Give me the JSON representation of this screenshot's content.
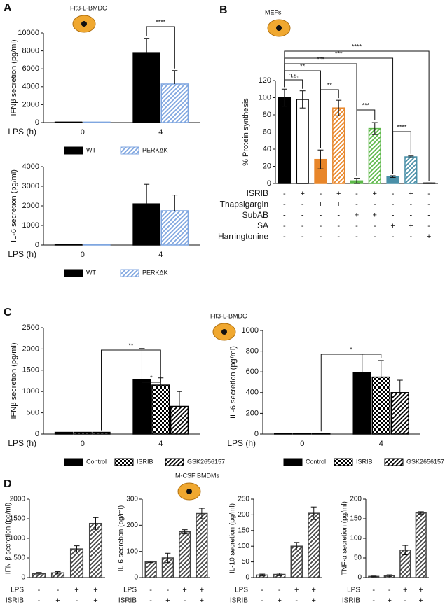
{
  "chart_data": [
    {
      "type": "bar",
      "panel": "A",
      "icon_label": "Flt3-L-BMDC",
      "ylabel": "IFNβ secretion (pg/ml)",
      "xlabel": "LPS (h)",
      "categories": [
        "0",
        "4"
      ],
      "series": [
        {
          "name": "WT",
          "color": "#000000",
          "pattern": "solid",
          "values": [
            50,
            7800
          ],
          "errors": [
            null,
            1600
          ]
        },
        {
          "name": "PERKΔK",
          "color": "#7fa6e0",
          "pattern": "hatch",
          "values": [
            50,
            4300
          ],
          "errors": [
            null,
            1500
          ]
        }
      ],
      "ylim": [
        0,
        10000
      ],
      "yticks": [
        0,
        2000,
        4000,
        6000,
        8000,
        10000
      ],
      "annotations": [
        "****"
      ]
    },
    {
      "type": "bar",
      "ylabel": "IL-6 secretion (pg/ml)",
      "xlabel": "LPS (h)",
      "categories": [
        "0",
        "4"
      ],
      "series": [
        {
          "name": "WT",
          "color": "#000000",
          "pattern": "solid",
          "values": [
            20,
            2100
          ],
          "errors": [
            null,
            1000
          ]
        },
        {
          "name": "PERKΔK",
          "color": "#7fa6e0",
          "pattern": "hatch",
          "values": [
            20,
            1750
          ],
          "errors": [
            null,
            800
          ]
        }
      ],
      "ylim": [
        0,
        4000
      ],
      "yticks": [
        0,
        1000,
        2000,
        3000,
        4000
      ]
    },
    {
      "type": "bar",
      "panel": "B",
      "icon_label": "MEFs",
      "ylabel": "% Protein synthesis",
      "values": [
        100,
        98,
        28,
        88,
        3,
        64,
        8,
        31,
        0.5
      ],
      "errors": [
        10,
        10,
        11,
        9,
        3,
        7,
        1,
        1,
        0
      ],
      "colors": [
        "#000000",
        "#000000",
        "#e8862a",
        "#e8862a",
        "#5cb848",
        "#5cb848",
        "#4a90a8",
        "#4a90a8",
        "#000000"
      ],
      "patterns": [
        "solid",
        "outline",
        "solid",
        "hatch",
        "solid",
        "hatch",
        "solid",
        "hatch",
        "solid"
      ],
      "conditions": [
        {
          "name": "ISRIB",
          "values": [
            "-",
            "+",
            "-",
            "+",
            "-",
            "+",
            "-",
            "+",
            "-"
          ]
        },
        {
          "name": "Thapsigargin",
          "values": [
            "-",
            "-",
            "+",
            "+",
            "-",
            "-",
            "-",
            "-",
            "-"
          ]
        },
        {
          "name": "SubAB",
          "values": [
            "-",
            "-",
            "-",
            "-",
            "+",
            "+",
            "-",
            "-",
            "-"
          ]
        },
        {
          "name": "SA",
          "values": [
            "-",
            "-",
            "-",
            "-",
            "-",
            "-",
            "+",
            "+",
            "-"
          ]
        },
        {
          "name": "Harringtonine",
          "values": [
            "-",
            "-",
            "-",
            "-",
            "-",
            "-",
            "-",
            "-",
            "+"
          ]
        }
      ],
      "ylim": [
        0,
        120
      ],
      "yticks": [
        0,
        20,
        40,
        60,
        80,
        100,
        120
      ],
      "annotations": [
        "n.s.",
        "**",
        "***",
        "***",
        "****",
        "**",
        "***",
        "****"
      ]
    },
    {
      "type": "bar",
      "panel": "C",
      "icon_label": "Flt3-L-BMDC",
      "ylabel": "IFNβ secretion (pg/ml)",
      "xlabel": "LPS (h)",
      "categories": [
        "0",
        "4"
      ],
      "series": [
        {
          "name": "Control",
          "color": "#000000",
          "pattern": "solid",
          "values": [
            40,
            1280
          ],
          "errors": [
            null,
            730
          ]
        },
        {
          "name": "ISRIB",
          "color": "#000000",
          "pattern": "check",
          "values": [
            40,
            1150
          ],
          "errors": [
            null,
            170
          ]
        },
        {
          "name": "GSK2656157",
          "color": "#000000",
          "pattern": "hatch",
          "values": [
            40,
            650
          ],
          "errors": [
            null,
            350
          ]
        }
      ],
      "ylim": [
        0,
        2500
      ],
      "yticks": [
        0,
        500,
        1000,
        1500,
        2000,
        2500
      ],
      "annotations": [
        "**",
        "*"
      ]
    },
    {
      "type": "bar",
      "ylabel": "IL-6 secretion (pg/ml)",
      "xlabel": "LPS (h)",
      "categories": [
        "0",
        "4"
      ],
      "series": [
        {
          "name": "Control",
          "color": "#000000",
          "pattern": "solid",
          "values": [
            5,
            590
          ],
          "errors": [
            null,
            180
          ]
        },
        {
          "name": "ISRIB",
          "color": "#000000",
          "pattern": "check",
          "values": [
            5,
            550
          ],
          "errors": [
            null,
            160
          ]
        },
        {
          "name": "GSK2656157",
          "color": "#000000",
          "pattern": "hatch",
          "values": [
            5,
            400
          ],
          "errors": [
            null,
            120
          ]
        }
      ],
      "ylim": [
        0,
        1000
      ],
      "yticks": [
        0,
        200,
        400,
        600,
        800,
        1000
      ],
      "annotations": [
        "*"
      ]
    },
    {
      "type": "bar",
      "panel": "D",
      "ylabel": "IFN-β secretion (pg/ml)",
      "values": [
        100,
        120,
        730,
        1380
      ],
      "errors": [
        30,
        30,
        80,
        150
      ],
      "color": "#444444",
      "pattern": "hatch",
      "conditions": [
        {
          "name": "LPS",
          "values": [
            "-",
            "-",
            "+",
            "+"
          ]
        },
        {
          "name": "ISRIB",
          "values": [
            "-",
            "+",
            "-",
            "+"
          ]
        }
      ],
      "ylim": [
        0,
        2000
      ],
      "yticks": [
        0,
        500,
        1000,
        1500,
        2000
      ]
    },
    {
      "type": "bar",
      "icon_label": "M-CSF BMDMs",
      "ylabel": "IL-6 secretion (pg/ml)",
      "values": [
        60,
        75,
        175,
        245
      ],
      "errors": [
        3,
        18,
        8,
        20
      ],
      "color": "#444444",
      "pattern": "hatch",
      "conditions": [
        {
          "name": "LPS",
          "values": [
            "-",
            "-",
            "+",
            "+"
          ]
        },
        {
          "name": "ISRIB",
          "values": [
            "-",
            "+",
            "-",
            "+"
          ]
        }
      ],
      "ylim": [
        0,
        300
      ],
      "yticks": [
        0,
        100,
        200,
        300
      ]
    },
    {
      "type": "bar",
      "ylabel": "IL-10 secretion (pg/ml)",
      "values": [
        8,
        10,
        100,
        205
      ],
      "errors": [
        3,
        4,
        12,
        20
      ],
      "color": "#444444",
      "pattern": "hatch",
      "conditions": [
        {
          "name": "LPS",
          "values": [
            "-",
            "-",
            "+",
            "+"
          ]
        },
        {
          "name": "ISRIB",
          "values": [
            "-",
            "+",
            "-",
            "+"
          ]
        }
      ],
      "ylim": [
        0,
        250
      ],
      "yticks": [
        0,
        50,
        100,
        150,
        200,
        250
      ]
    },
    {
      "type": "bar",
      "ylabel": "TNF-α secretion (pg/ml)",
      "values": [
        3,
        5,
        70,
        165
      ],
      "errors": [
        1,
        2,
        12,
        3
      ],
      "color": "#444444",
      "pattern": "hatch",
      "conditions": [
        {
          "name": "LPS",
          "values": [
            "-",
            "-",
            "+",
            "+"
          ]
        },
        {
          "name": "ISRIB",
          "values": [
            "-",
            "+",
            "-",
            "+"
          ]
        }
      ],
      "ylim": [
        0,
        200
      ],
      "yticks": [
        0,
        50,
        100,
        150,
        200
      ]
    }
  ]
}
